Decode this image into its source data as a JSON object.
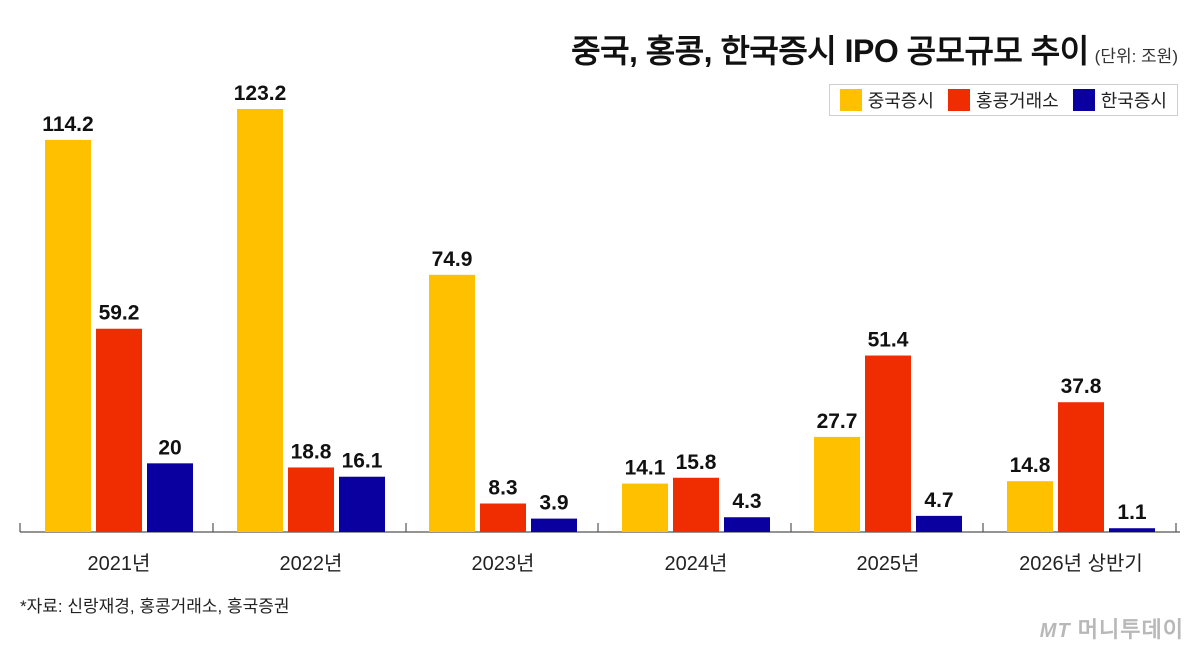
{
  "header": {
    "title": "중국, 홍콩, 한국증시 IPO 공모규모 추이",
    "unit": "(단위: 조원)"
  },
  "legend": [
    {
      "label": "중국증시",
      "color": "#FFC000"
    },
    {
      "label": "홍콩거래소",
      "color": "#F02D00"
    },
    {
      "label": "한국증시",
      "color": "#0A00A0"
    }
  ],
  "footer": {
    "source": "*자료: 신랑재경, 홍콩거래소, 흥국증권",
    "logo_mark": "MT",
    "logo_text": "머니투데이"
  },
  "chart_data": {
    "type": "bar",
    "title": "중국, 홍콩, 한국증시 IPO 공모규모 추이",
    "unit": "조원",
    "categories": [
      "2021년",
      "2022년",
      "2023년",
      "2024년",
      "2025년",
      "2026년 상반기"
    ],
    "series": [
      {
        "name": "중국증시",
        "color": "#FFC000",
        "values": [
          114.2,
          123.2,
          74.9,
          14.1,
          27.7,
          14.8
        ],
        "labels": [
          "114.2",
          "123.2",
          "74.9",
          "14.1",
          "27.7",
          "14.8"
        ]
      },
      {
        "name": "홍콩거래소",
        "color": "#F02D00",
        "values": [
          59.2,
          18.8,
          8.3,
          15.8,
          51.4,
          37.8
        ],
        "labels": [
          "59.2",
          "18.8",
          "8.3",
          "15.8",
          "51.4",
          "37.8"
        ]
      },
      {
        "name": "한국증시",
        "color": "#0A00A0",
        "values": [
          20,
          16.1,
          3.9,
          4.3,
          4.7,
          1.1
        ],
        "labels": [
          "20",
          "16.1",
          "3.9",
          "4.3",
          "4.7",
          "1.1"
        ]
      }
    ],
    "ylim": [
      0,
      123.2
    ],
    "grid": false,
    "legend_position": "top-right"
  }
}
